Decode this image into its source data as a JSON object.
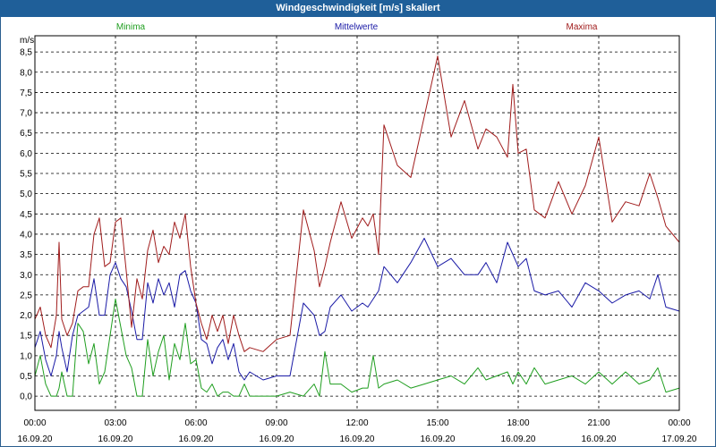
{
  "window": {
    "title": "Windgeschwindigkeit [m/s] skaliert"
  },
  "chart_data": {
    "type": "line",
    "title": "Windgeschwindigkeit [m/s] skaliert",
    "ylabel": "m/s",
    "ylim": [
      -0.35,
      8.9
    ],
    "yticks": [
      0.0,
      0.5,
      1.0,
      1.5,
      2.0,
      2.5,
      3.0,
      3.5,
      4.0,
      4.5,
      5.0,
      5.5,
      6.0,
      6.5,
      7.0,
      7.5,
      8.0,
      8.5
    ],
    "ytick_labels": [
      "0,0",
      "0,5",
      "1,0",
      "1,5",
      "2,0",
      "2,5",
      "3,0",
      "3,5",
      "4,0",
      "4,5",
      "5,0",
      "5,5",
      "6,0",
      "6,5",
      "7,0",
      "7,5",
      "8,0",
      "8,5"
    ],
    "xlim": [
      0,
      24
    ],
    "xticks": [
      0,
      3,
      6,
      9,
      12,
      15,
      18,
      21,
      24
    ],
    "xtick_labels": [
      "00:00",
      "03:00",
      "06:00",
      "09:00",
      "12:00",
      "15:00",
      "18:00",
      "21:00",
      "00:00"
    ],
    "xtick_dates": [
      "16.09.20",
      "16.09.20",
      "16.09.20",
      "16.09.20",
      "16.09.20",
      "16.09.20",
      "16.09.20",
      "16.09.20",
      "17.09.20"
    ],
    "x_unit": "hours",
    "series": [
      {
        "name": "Minima",
        "color": "#1f9e1f",
        "x": [
          0.0,
          0.2,
          0.4,
          0.6,
          0.8,
          0.9,
          1.0,
          1.2,
          1.4,
          1.6,
          1.8,
          2.0,
          2.2,
          2.4,
          2.6,
          2.8,
          3.0,
          3.2,
          3.4,
          3.6,
          3.8,
          4.0,
          4.2,
          4.4,
          4.6,
          4.8,
          5.0,
          5.2,
          5.4,
          5.6,
          5.8,
          6.0,
          6.2,
          6.4,
          6.6,
          6.8,
          7.0,
          7.2,
          7.4,
          7.6,
          7.8,
          8.0,
          8.5,
          9.0,
          9.5,
          10.0,
          10.4,
          10.6,
          10.8,
          11.0,
          11.4,
          11.8,
          12.2,
          12.4,
          12.6,
          12.8,
          13.0,
          13.5,
          14.0,
          14.5,
          15.0,
          15.5,
          16.0,
          16.5,
          16.8,
          17.2,
          17.6,
          17.8,
          18.0,
          18.3,
          18.6,
          19.0,
          19.5,
          20.0,
          20.5,
          21.0,
          21.5,
          22.0,
          22.5,
          22.9,
          23.2,
          23.5,
          24.0
        ],
        "values": [
          0.5,
          1.0,
          0.3,
          0.0,
          0.0,
          0.2,
          0.6,
          0.0,
          0.0,
          1.8,
          1.6,
          0.8,
          1.3,
          0.3,
          0.6,
          1.5,
          2.4,
          1.7,
          1.0,
          0.7,
          0.0,
          0.0,
          1.4,
          0.5,
          1.1,
          1.5,
          0.4,
          1.3,
          0.9,
          1.8,
          0.8,
          0.9,
          0.2,
          0.1,
          0.3,
          0.0,
          0.1,
          0.1,
          0.0,
          0.0,
          0.3,
          0.0,
          0.0,
          0.0,
          0.1,
          0.0,
          0.3,
          0.0,
          1.1,
          0.3,
          0.3,
          0.1,
          0.2,
          0.2,
          1.0,
          0.2,
          0.3,
          0.4,
          0.2,
          0.3,
          0.4,
          0.5,
          0.3,
          0.7,
          0.4,
          0.5,
          0.6,
          0.3,
          0.6,
          0.3,
          0.7,
          0.3,
          0.4,
          0.5,
          0.3,
          0.6,
          0.3,
          0.6,
          0.3,
          0.4,
          0.7,
          0.1,
          0.2
        ]
      },
      {
        "name": "Mittelwerte",
        "color": "#1a1aa6",
        "x": [
          0.0,
          0.2,
          0.4,
          0.6,
          0.8,
          0.9,
          1.0,
          1.2,
          1.4,
          1.6,
          1.8,
          2.0,
          2.2,
          2.4,
          2.6,
          2.8,
          3.0,
          3.2,
          3.4,
          3.6,
          3.8,
          4.0,
          4.2,
          4.4,
          4.6,
          4.8,
          5.0,
          5.2,
          5.4,
          5.6,
          5.8,
          6.0,
          6.2,
          6.4,
          6.6,
          6.8,
          7.0,
          7.2,
          7.4,
          7.6,
          7.8,
          8.0,
          8.5,
          9.0,
          9.5,
          10.0,
          10.4,
          10.6,
          10.8,
          11.0,
          11.4,
          11.8,
          12.2,
          12.4,
          12.6,
          12.8,
          13.0,
          13.5,
          14.0,
          14.5,
          15.0,
          15.5,
          16.0,
          16.5,
          16.8,
          17.2,
          17.6,
          17.8,
          18.0,
          18.3,
          18.6,
          19.0,
          19.5,
          20.0,
          20.5,
          21.0,
          21.5,
          22.0,
          22.5,
          22.9,
          23.2,
          23.5,
          24.0
        ],
        "values": [
          1.2,
          1.6,
          0.9,
          0.5,
          1.0,
          1.6,
          1.2,
          0.6,
          1.5,
          2.0,
          2.1,
          2.2,
          2.9,
          2.0,
          2.0,
          3.0,
          3.3,
          2.9,
          2.7,
          2.1,
          1.4,
          1.4,
          2.8,
          2.3,
          2.9,
          2.5,
          2.8,
          2.2,
          3.0,
          3.1,
          2.6,
          2.3,
          1.4,
          1.3,
          0.8,
          1.2,
          1.4,
          0.9,
          1.3,
          0.6,
          0.4,
          0.6,
          0.4,
          0.5,
          0.5,
          2.3,
          2.0,
          1.5,
          1.6,
          2.2,
          2.5,
          2.1,
          2.3,
          2.2,
          2.4,
          2.6,
          3.2,
          2.8,
          3.3,
          3.9,
          3.2,
          3.4,
          3.0,
          3.0,
          3.3,
          2.8,
          3.8,
          3.5,
          3.2,
          3.4,
          2.6,
          2.5,
          2.6,
          2.2,
          2.8,
          2.6,
          2.3,
          2.5,
          2.6,
          2.4,
          3.0,
          2.2,
          2.1
        ]
      },
      {
        "name": "Maxima",
        "color": "#a01c1c",
        "x": [
          0.0,
          0.2,
          0.4,
          0.6,
          0.8,
          0.9,
          1.0,
          1.2,
          1.4,
          1.6,
          1.8,
          2.0,
          2.2,
          2.4,
          2.6,
          2.8,
          3.0,
          3.2,
          3.4,
          3.6,
          3.8,
          4.0,
          4.2,
          4.4,
          4.6,
          4.8,
          5.0,
          5.2,
          5.4,
          5.6,
          5.8,
          6.0,
          6.2,
          6.4,
          6.6,
          6.8,
          7.0,
          7.2,
          7.4,
          7.6,
          7.8,
          8.0,
          8.5,
          9.0,
          9.5,
          10.0,
          10.4,
          10.6,
          10.8,
          11.0,
          11.4,
          11.8,
          12.2,
          12.4,
          12.6,
          12.8,
          13.0,
          13.5,
          14.0,
          14.5,
          15.0,
          15.5,
          16.0,
          16.5,
          16.8,
          17.2,
          17.6,
          17.8,
          18.0,
          18.3,
          18.6,
          19.0,
          19.5,
          20.0,
          20.5,
          21.0,
          21.5,
          22.0,
          22.5,
          22.9,
          23.2,
          23.5,
          24.0
        ],
        "values": [
          1.9,
          2.2,
          1.5,
          1.2,
          2.0,
          3.8,
          1.9,
          1.5,
          1.8,
          2.6,
          2.7,
          2.7,
          4.0,
          4.4,
          3.2,
          3.3,
          4.3,
          4.4,
          3.1,
          1.7,
          2.9,
          2.4,
          3.6,
          4.1,
          3.3,
          3.7,
          3.5,
          4.3,
          3.9,
          4.5,
          3.2,
          2.3,
          1.8,
          1.4,
          2.0,
          1.6,
          2.0,
          1.3,
          2.0,
          1.5,
          1.1,
          1.2,
          1.1,
          1.4,
          1.5,
          4.6,
          3.6,
          2.7,
          3.2,
          3.8,
          4.8,
          3.9,
          4.4,
          4.2,
          4.5,
          3.5,
          6.7,
          5.7,
          5.4,
          6.9,
          8.4,
          6.4,
          7.3,
          6.1,
          6.6,
          6.4,
          5.9,
          7.7,
          6.0,
          6.1,
          4.6,
          4.4,
          5.3,
          4.5,
          5.2,
          6.4,
          4.3,
          4.8,
          4.7,
          5.5,
          4.9,
          4.2,
          3.8
        ]
      }
    ]
  }
}
